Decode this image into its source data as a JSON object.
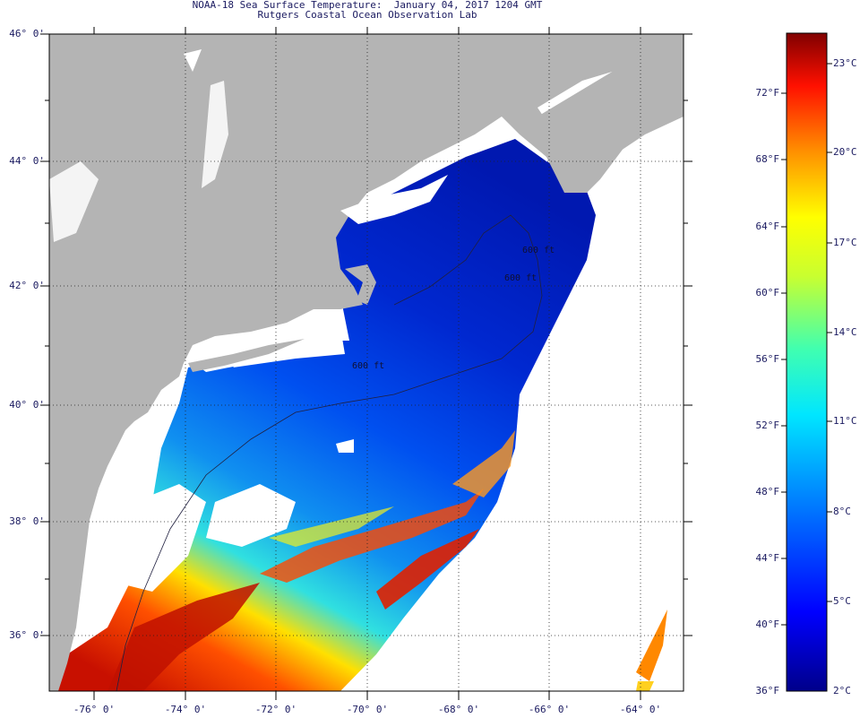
{
  "title": "NOAA-18 Sea Surface Temperature:  January 04, 2017 1204 GMT",
  "subtitle": "Rutgers Coastal Ocean Observation Lab",
  "lat_labels": [
    "46° 0'",
    "44° 0'",
    "42° 0'",
    "40° 0'",
    "38° 0'",
    "36° 0'"
  ],
  "lon_labels": [
    "-76° 0'",
    "-74° 0'",
    "-72° 0'",
    "-70° 0'",
    "-68° 0'",
    "-66° 0'",
    "-64° 0'"
  ],
  "contour_labels": [
    "600 ft",
    "600 ft",
    "600 ft"
  ],
  "colorbar": {
    "fahrenheit": [
      "72°F",
      "68°F",
      "64°F",
      "60°F",
      "56°F",
      "52°F",
      "48°F",
      "44°F",
      "40°F",
      "36°F"
    ],
    "celsius": [
      "23°C",
      "20°C",
      "17°C",
      "14°C",
      "11°C",
      "8°C",
      "5°C",
      "2°C"
    ]
  },
  "colors": {
    "land": "#b4b4b4",
    "cloud": "#ffffff",
    "text": "#1a1a60"
  }
}
